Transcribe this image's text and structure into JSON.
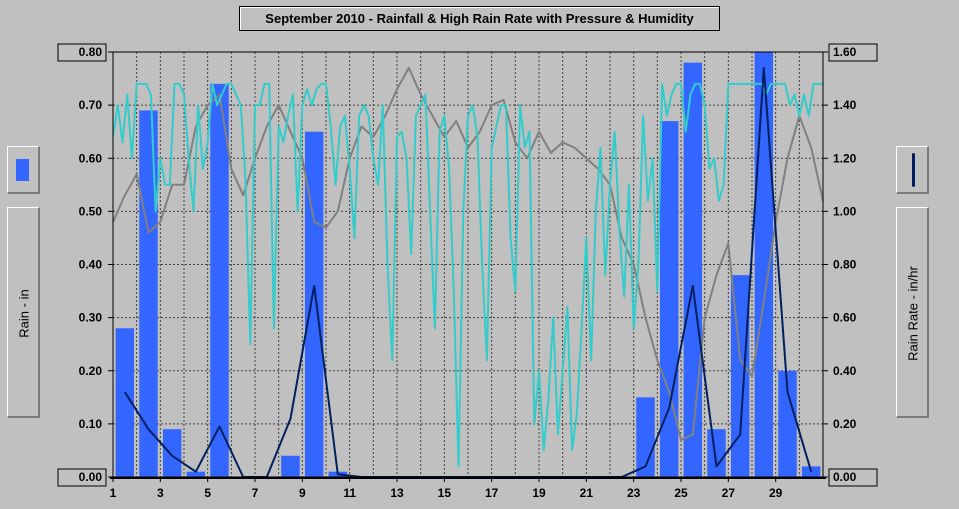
{
  "chart_data": {
    "type": "bar",
    "title": "September 2010 - Rainfall & High Rain Rate with Pressure & Humidity",
    "ylabel": "Rain - in",
    "y2label": "Rain Rate - in/hr",
    "ylim": [
      0,
      0.8
    ],
    "y2lim": [
      0,
      1.6
    ],
    "xlim": [
      1,
      31
    ],
    "y_ticks": [
      "0.00",
      "0.10",
      "0.20",
      "0.30",
      "0.40",
      "0.50",
      "0.60",
      "0.70",
      "0.80"
    ],
    "y2_ticks": [
      "0.00",
      "0.20",
      "0.40",
      "0.60",
      "0.80",
      "1.00",
      "1.20",
      "1.40",
      "1.60"
    ],
    "x_ticks": [
      "1",
      "3",
      "5",
      "7",
      "9",
      "11",
      "13",
      "15",
      "17",
      "19",
      "21",
      "23",
      "25",
      "27",
      "29"
    ],
    "grid": true,
    "colors": {
      "rain": "#3366ff",
      "rain_rate": "#002060",
      "humidity": "#33cccc",
      "pressure": "#808080",
      "plot_bg": "#c0c0c0"
    },
    "series": [
      {
        "name": "Rain",
        "axis": "left",
        "type": "bar",
        "days": [
          1,
          2,
          3,
          4,
          5,
          6,
          7,
          8,
          9,
          10,
          11,
          12,
          13,
          14,
          15,
          16,
          17,
          18,
          19,
          20,
          21,
          22,
          23,
          24,
          25,
          26,
          27,
          28,
          29,
          30
        ],
        "values": [
          0.28,
          0.69,
          0.09,
          0.01,
          0.74,
          0,
          0,
          0.04,
          0.65,
          0.01,
          0,
          0,
          0,
          0,
          0,
          0,
          0,
          0,
          0,
          0,
          0,
          0,
          0.15,
          0.67,
          0.78,
          0.09,
          0.38,
          0.8,
          0.2,
          0.02
        ]
      },
      {
        "name": "High Rain Rate",
        "axis": "right",
        "type": "line",
        "x": [
          1.5,
          2.5,
          3.5,
          4.5,
          5.5,
          6.5,
          7.5,
          8.5,
          9.5,
          10.5,
          11.5,
          12.5,
          13.5,
          14.5,
          15.5,
          16.5,
          17.5,
          18.5,
          19.5,
          20.5,
          21.5,
          22.5,
          23.5,
          24.5,
          25.5,
          26.5,
          27.5,
          28.5,
          29.5,
          30.5
        ],
        "values": [
          0.32,
          0.18,
          0.08,
          0.02,
          0.19,
          0,
          0,
          0.22,
          0.72,
          0.01,
          0,
          0,
          0,
          0,
          0,
          0,
          0,
          0,
          0,
          0,
          0,
          0,
          0.04,
          0.26,
          0.72,
          0.04,
          0.16,
          1.54,
          0.32,
          0.02
        ]
      },
      {
        "name": "Humidity",
        "axis": "left",
        "type": "line",
        "x": [
          1,
          1.2,
          1.4,
          1.6,
          1.8,
          2,
          2.2,
          2.4,
          2.6,
          2.8,
          3,
          3.2,
          3.4,
          3.6,
          3.8,
          4,
          4.2,
          4.4,
          4.6,
          4.8,
          5,
          5.2,
          5.4,
          5.6,
          5.8,
          6,
          6.2,
          6.4,
          6.6,
          6.8,
          7,
          7.2,
          7.4,
          7.6,
          7.8,
          8,
          8.2,
          8.4,
          8.6,
          8.8,
          9,
          9.2,
          9.4,
          9.6,
          9.8,
          10,
          10.2,
          10.4,
          10.6,
          10.8,
          11,
          11.2,
          11.4,
          11.6,
          11.8,
          12,
          12.2,
          12.4,
          12.6,
          12.8,
          13,
          13.2,
          13.4,
          13.6,
          13.8,
          14,
          14.2,
          14.4,
          14.6,
          14.8,
          15,
          15.2,
          15.4,
          15.6,
          15.8,
          16,
          16.2,
          16.4,
          16.6,
          16.8,
          17,
          17.2,
          17.4,
          17.6,
          17.8,
          18,
          18.2,
          18.4,
          18.6,
          18.8,
          19,
          19.2,
          19.4,
          19.6,
          19.8,
          20,
          20.2,
          20.4,
          20.6,
          20.8,
          21,
          21.2,
          21.4,
          21.6,
          21.8,
          22,
          22.2,
          22.4,
          22.6,
          22.8,
          23,
          23.2,
          23.4,
          23.6,
          23.8,
          24,
          24.2,
          24.4,
          24.6,
          24.8,
          25,
          25.2,
          25.4,
          25.6,
          25.8,
          26,
          26.2,
          26.4,
          26.6,
          26.8,
          27,
          27.2,
          27.4,
          27.6,
          27.8,
          28,
          28.2,
          28.4,
          28.6,
          28.8,
          29,
          29.2,
          29.4,
          29.6,
          29.8,
          30,
          30.2,
          30.4,
          30.6,
          30.8,
          31
        ],
        "values": [
          0.64,
          0.7,
          0.63,
          0.72,
          0.6,
          0.74,
          0.74,
          0.74,
          0.72,
          0.5,
          0.6,
          0.55,
          0.55,
          0.74,
          0.74,
          0.72,
          0.6,
          0.5,
          0.7,
          0.58,
          0.63,
          0.74,
          0.7,
          0.72,
          0.74,
          0.74,
          0.72,
          0.7,
          0.56,
          0.25,
          0.7,
          0.7,
          0.74,
          0.74,
          0.28,
          0.66,
          0.63,
          0.68,
          0.72,
          0.5,
          0.7,
          0.73,
          0.7,
          0.73,
          0.74,
          0.74,
          0.66,
          0.55,
          0.66,
          0.68,
          0.58,
          0.45,
          0.68,
          0.7,
          0.68,
          0.6,
          0.55,
          0.7,
          0.4,
          0.22,
          0.64,
          0.65,
          0.6,
          0.42,
          0.68,
          0.7,
          0.72,
          0.5,
          0.28,
          0.65,
          0.68,
          0.58,
          0.35,
          0.02,
          0.5,
          0.68,
          0.7,
          0.64,
          0.4,
          0.22,
          0.62,
          0.66,
          0.7,
          0.7,
          0.45,
          0.35,
          0.7,
          0.62,
          0.65,
          0.1,
          0.2,
          0.05,
          0.15,
          0.3,
          0.08,
          0.2,
          0.32,
          0.05,
          0.12,
          0.28,
          0.45,
          0.22,
          0.5,
          0.62,
          0.38,
          0.55,
          0.65,
          0.46,
          0.34,
          0.55,
          0.28,
          0.4,
          0.68,
          0.52,
          0.6,
          0.35,
          0.74,
          0.68,
          0.72,
          0.74,
          0.74,
          0.65,
          0.72,
          0.74,
          0.74,
          0.7,
          0.58,
          0.6,
          0.52,
          0.55,
          0.74,
          0.74,
          0.74,
          0.74,
          0.74,
          0.74,
          0.74,
          0.74,
          0.72,
          0.74,
          0.74,
          0.74,
          0.74,
          0.7,
          0.72,
          0.68,
          0.72,
          0.68,
          0.74,
          0.74,
          0.74
        ]
      },
      {
        "name": "Pressure",
        "axis": "left",
        "type": "line",
        "x": [
          1,
          1.5,
          2,
          2.5,
          3,
          3.5,
          4,
          4.5,
          5,
          5.5,
          6,
          6.5,
          7,
          7.5,
          8,
          8.5,
          9,
          9.5,
          10,
          10.5,
          11,
          11.5,
          12,
          12.5,
          13,
          13.5,
          14,
          14.5,
          15,
          15.5,
          16,
          16.5,
          17,
          17.5,
          18,
          18.5,
          19,
          19.5,
          20,
          20.5,
          21,
          21.5,
          22,
          22.5,
          23,
          23.5,
          24,
          24.5,
          25,
          25.5,
          26,
          26.5,
          27,
          27.5,
          28,
          28.5,
          29,
          29.5,
          30,
          30.5,
          31
        ],
        "values": [
          0.48,
          0.53,
          0.57,
          0.46,
          0.48,
          0.55,
          0.55,
          0.66,
          0.7,
          0.72,
          0.58,
          0.53,
          0.6,
          0.66,
          0.7,
          0.65,
          0.6,
          0.48,
          0.47,
          0.5,
          0.6,
          0.66,
          0.64,
          0.68,
          0.73,
          0.77,
          0.72,
          0.68,
          0.64,
          0.67,
          0.62,
          0.65,
          0.7,
          0.71,
          0.63,
          0.6,
          0.65,
          0.61,
          0.63,
          0.62,
          0.6,
          0.58,
          0.55,
          0.45,
          0.4,
          0.3,
          0.22,
          0.16,
          0.07,
          0.08,
          0.3,
          0.38,
          0.44,
          0.22,
          0.19,
          0.33,
          0.48,
          0.6,
          0.68,
          0.62,
          0.52
        ]
      }
    ]
  }
}
